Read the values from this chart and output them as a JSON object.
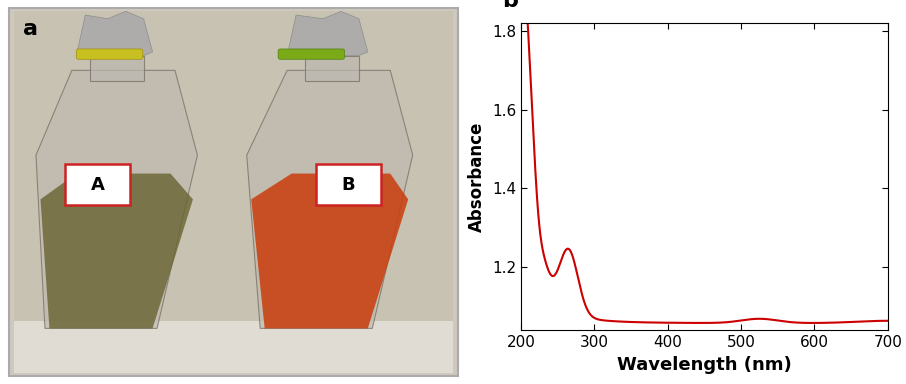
{
  "line_color": "#cc0000",
  "line_width": 1.5,
  "xlabel": "Wavelength (nm)",
  "ylabel": "Absorbance",
  "xlabel_fontsize": 13,
  "ylabel_fontsize": 12,
  "xlabel_fontweight": "bold",
  "ylabel_fontweight": "bold",
  "xlim": [
    200,
    700
  ],
  "ylim": [
    1.04,
    1.82
  ],
  "yticks": [
    1.2,
    1.4,
    1.6,
    1.8
  ],
  "ytick_labels": [
    "1.2",
    "1.4",
    "1.6",
    "1.8"
  ],
  "xticks": [
    200,
    300,
    400,
    500,
    600,
    700
  ],
  "label_a": "a",
  "label_b": "b",
  "label_fontsize": 16,
  "label_fontweight": "bold",
  "tick_fontsize": 11,
  "background_color": "#ffffff",
  "spine_color": "#000000",
  "photo_bg": "#cec8be",
  "photo_wall": "#c8c2b2",
  "photo_table": "#e0dcd4",
  "flask_glass": "#b8b0a0",
  "flask_edge": "#706860",
  "liquid_A": "#6b6535",
  "liquid_B": "#c84010",
  "band_A": "#c8c020",
  "band_B": "#7aaa18",
  "foil_color": "#909090",
  "label_box_edge": "#cc2222",
  "photo_border": "#aaaaaa"
}
